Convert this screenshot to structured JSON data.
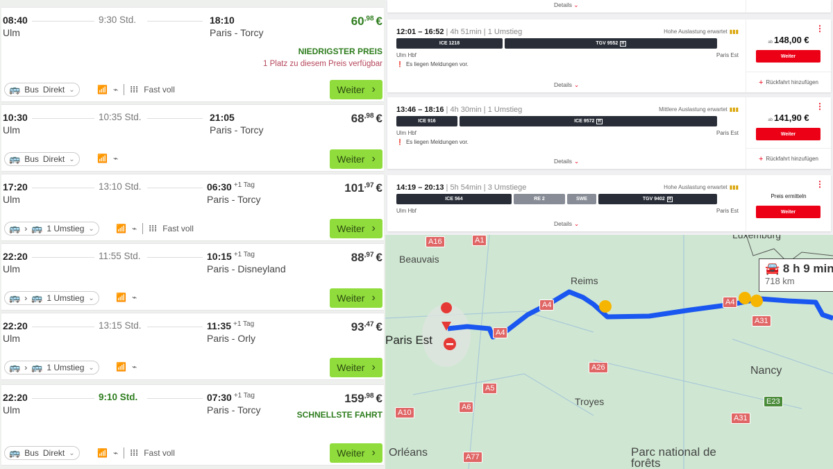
{
  "flix": {
    "continue_label": "Weiter",
    "currency": "€",
    "cards": [
      {
        "dep": "08:40",
        "from": "Ulm",
        "duration": "9:30 Std.",
        "arr": "18:10",
        "next_day": "",
        "to": "Paris - Torcy",
        "price_main": "60",
        "price_cents": ",98",
        "price_green": true,
        "badge": "NIEDRIGSTER PREIS",
        "note": "1 Platz zu diesem Preis verfügbar",
        "mode": "Bus",
        "transfer": "Direkt",
        "capacity": "Fast voll"
      },
      {
        "dep": "10:30",
        "from": "Ulm",
        "duration": "10:35 Std.",
        "arr": "21:05",
        "next_day": "",
        "to": "Paris - Torcy",
        "price_main": "68",
        "price_cents": ",98",
        "mode": "Bus",
        "transfer": "Direkt",
        "capacity": ""
      },
      {
        "dep": "17:20",
        "from": "Ulm",
        "duration": "13:10 Std.",
        "arr": "06:30",
        "next_day": "+1 Tag",
        "to": "Paris - Torcy",
        "price_main": "101",
        "price_cents": ",97",
        "mode": "",
        "transfer": "1 Umstieg",
        "capacity": "Fast voll"
      },
      {
        "dep": "22:20",
        "from": "Ulm",
        "duration": "11:55 Std.",
        "arr": "10:15",
        "next_day": "+1 Tag",
        "to": "Paris - Disneyland",
        "price_main": "88",
        "price_cents": ",97",
        "mode": "",
        "transfer": "1 Umstieg",
        "capacity": ""
      },
      {
        "dep": "22:20",
        "from": "Ulm",
        "duration": "13:15 Std.",
        "arr": "11:35",
        "next_day": "+1 Tag",
        "to": "Paris - Orly",
        "price_main": "93",
        "price_cents": ",47",
        "mode": "",
        "transfer": "1 Umstieg",
        "capacity": ""
      },
      {
        "dep": "22:20",
        "from": "Ulm",
        "duration": "9:10 Std.",
        "duration_fast": true,
        "arr": "07:30",
        "next_day": "+1 Tag",
        "to": "Paris - Torcy",
        "price_main": "159",
        "price_cents": ",98",
        "badge": "SCHNELLSTE FAHRT",
        "mode": "Bus",
        "transfer": "Direkt",
        "capacity": "Fast voll"
      }
    ]
  },
  "db": {
    "details_label": "Details",
    "continue_label": "Weiter",
    "return_label": "Rückfahrt hinzufügen",
    "from_label": "ab",
    "accent": "#ec0016",
    "cards": [
      {
        "times": "12:01 – 16:52",
        "duration": "4h 51min",
        "transfers": "1 Umstieg",
        "occupancy": "Hohe Auslastung erwartet",
        "from": "Ulm Hbf",
        "to": "Paris Est",
        "message": "Es liegen Meldungen vor.",
        "price": "148,00 €",
        "segments": [
          {
            "name": "ICE 1218"
          },
          {
            "name": "TGV 9552",
            "r": "R"
          }
        ]
      },
      {
        "times": "13:46 – 18:16",
        "duration": "4h 30min",
        "transfers": "1 Umstieg",
        "occupancy": "Mittlere Auslastung erwartet",
        "from": "Ulm Hbf",
        "to": "Paris Est",
        "message": "Es liegen Meldungen vor.",
        "price": "141,90 €",
        "segments": [
          {
            "name": "ICE 916"
          },
          {
            "name": "ICE 9572",
            "r": "R"
          }
        ]
      },
      {
        "times": "14:19 – 20:13",
        "duration": "5h 54min",
        "transfers": "3 Umstiege",
        "occupancy": "Hohe Auslastung erwartet",
        "from": "Ulm Hbf",
        "to": "Paris Est",
        "price_text": "Preis ermitteln",
        "segments": [
          {
            "name": "ICE 564"
          },
          {
            "name": "RE 2"
          },
          {
            "name": "SWE"
          },
          {
            "name": "TGV 9402",
            "r": "R"
          }
        ]
      }
    ]
  },
  "map": {
    "route_color": "#1a56f0",
    "duration": "8 h 9 min",
    "distance": "718 km",
    "places": [
      "Beauvais",
      "Reims",
      "Paris Est",
      "Nancy",
      "Troyes",
      "Orléans",
      "Luxemburg",
      "Parc national de forêts"
    ],
    "roads": [
      "A16",
      "A1",
      "A4",
      "A4",
      "A4",
      "A26",
      "A5",
      "A6",
      "A10",
      "A77",
      "A31",
      "A31",
      "E23"
    ]
  }
}
